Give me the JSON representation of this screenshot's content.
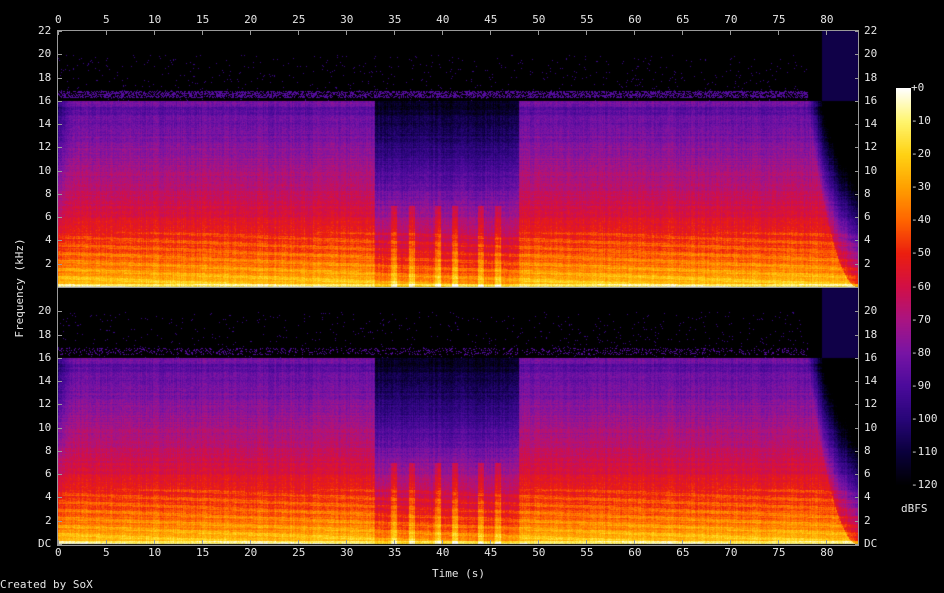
{
  "chart_data": {
    "type": "heatmap",
    "title": "",
    "xlabel": "Time (s)",
    "ylabel": "Frequency (kHz)",
    "xlim": [
      0,
      83.3
    ],
    "ylim": [
      0,
      22
    ],
    "x_ticks": [
      "0",
      "5",
      "10",
      "15",
      "20",
      "25",
      "30",
      "35",
      "40",
      "45",
      "50",
      "55",
      "60",
      "65",
      "70",
      "75",
      "80"
    ],
    "y_ticks_top": [
      "2",
      "4",
      "6",
      "8",
      "10",
      "12",
      "14",
      "16",
      "18",
      "20",
      "22"
    ],
    "y_ticks_bottom": [
      "DC",
      "2",
      "4",
      "6",
      "8",
      "10",
      "12",
      "14",
      "16",
      "18",
      "20"
    ],
    "channels": 2,
    "colorbar": {
      "label": "dBFS",
      "ticks": [
        "+0",
        "-10",
        "-20",
        "-30",
        "-40",
        "-50",
        "-60",
        "-70",
        "-80",
        "-90",
        "-100",
        "-110",
        "-120"
      ],
      "range": [
        -120,
        0
      ],
      "colors": [
        "#000000",
        "#1a0050",
        "#4b0b9a",
        "#8c1aa8",
        "#c8125a",
        "#e8200a",
        "#ff7000",
        "#ffc800",
        "#fff060",
        "#ffffff"
      ]
    },
    "features": {
      "lowpass_cutoff_khz": 16,
      "quiet_section_s": [
        33,
        48
      ],
      "fade_out_start_s": 78
    }
  },
  "footer": {
    "credit": "Created by SoX"
  }
}
